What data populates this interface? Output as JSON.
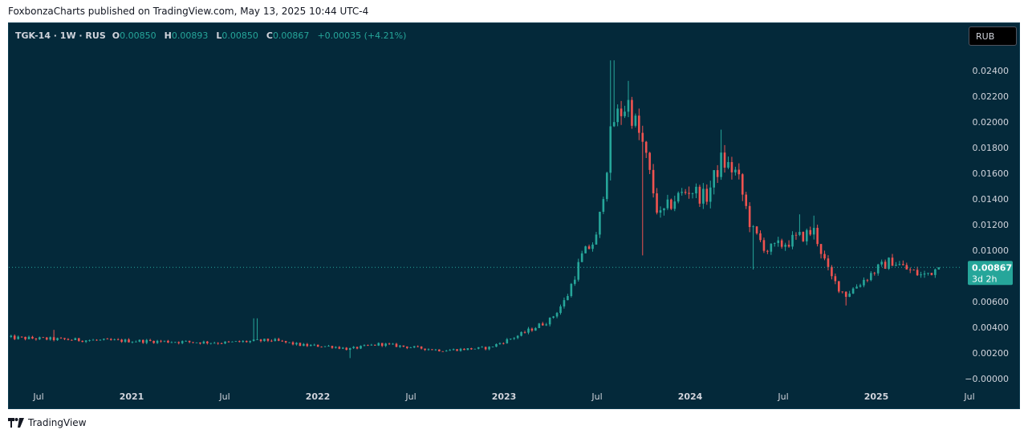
{
  "header": {
    "credit": "FoxbonzaCharts published on TradingView.com, May 13, 2025 10:44 UTC-4"
  },
  "legend": {
    "symbol": "TGK-14 · 1W · RUS",
    "o_label": "O",
    "o_value": "0.00850",
    "h_label": "H",
    "h_value": "0.00893",
    "l_label": "L",
    "l_value": "0.00850",
    "c_label": "C",
    "c_value": "0.00867",
    "change": "+0.00035 (+4.21%)"
  },
  "currency_button": "RUB",
  "price_badge": {
    "price": "0.00867",
    "countdown": "3d 2h"
  },
  "footer": {
    "brand": "TradingView"
  },
  "colors": {
    "background": "#04293a",
    "up": "#26a69a",
    "down": "#ef5350",
    "axis_text": "#d1d4dc"
  },
  "chart_data": {
    "type": "candlestick",
    "interval": "1W",
    "x_tick_labels": [
      "Jul",
      "2021",
      "Jul",
      "2022",
      "Jul",
      "2023",
      "Jul",
      "2024",
      "Jul",
      "2025",
      "Jul"
    ],
    "y_tick_labels": [
      "0.02400",
      "0.02200",
      "0.02000",
      "0.01800",
      "0.01600",
      "0.01400",
      "0.01200",
      "0.01000",
      "0.00800",
      "0.00600",
      "0.00400",
      "0.00200",
      "−0.00000"
    ],
    "y_tick_values": [
      0.024,
      0.022,
      0.02,
      0.018,
      0.016,
      0.014,
      0.012,
      0.01,
      0.008,
      0.006,
      0.004,
      0.002,
      0.0
    ],
    "ylim": [
      -0.0001,
      0.0255
    ],
    "x_range": [
      "2020-05",
      "2025-07"
    ],
    "grid": false,
    "last_price": 0.00867,
    "price_anchors": [
      [
        "2020-05",
        0.0032
      ],
      [
        "2020-10",
        0.003
      ],
      [
        "2021-03",
        0.0029
      ],
      [
        "2021-07",
        0.0028
      ],
      [
        "2021-10",
        0.003
      ],
      [
        "2021-12",
        0.0026
      ],
      [
        "2022-02",
        0.0025
      ],
      [
        "2022-03",
        0.0023
      ],
      [
        "2022-05",
        0.0027
      ],
      [
        "2022-09",
        0.0022
      ],
      [
        "2022-12",
        0.0024
      ],
      [
        "2023-02",
        0.0034
      ],
      [
        "2023-04",
        0.0046
      ],
      [
        "2023-05",
        0.0062
      ],
      [
        "2023-06",
        0.0095
      ],
      [
        "2023-07",
        0.011
      ],
      [
        "2023-08",
        0.02
      ],
      [
        "2023-09",
        0.0215
      ],
      [
        "2023-10",
        0.018
      ],
      [
        "2023-11",
        0.0125
      ],
      [
        "2023-12",
        0.014
      ],
      [
        "2024-01",
        0.0148
      ],
      [
        "2024-02",
        0.014
      ],
      [
        "2024-03",
        0.017
      ],
      [
        "2024-04",
        0.016
      ],
      [
        "2024-05",
        0.0115
      ],
      [
        "2024-06",
        0.01
      ],
      [
        "2024-07",
        0.0105
      ],
      [
        "2024-08",
        0.011
      ],
      [
        "2024-09",
        0.0115
      ],
      [
        "2024-10",
        0.008
      ],
      [
        "2024-11",
        0.0065
      ],
      [
        "2024-12",
        0.0075
      ],
      [
        "2025-01",
        0.0085
      ],
      [
        "2025-02",
        0.0092
      ],
      [
        "2025-03",
        0.0085
      ],
      [
        "2025-04",
        0.008
      ],
      [
        "2025-05",
        0.00867
      ]
    ],
    "spike_highs": [
      [
        "2020-08",
        0.0038
      ],
      [
        "2021-09",
        0.0047
      ],
      [
        "2023-08",
        0.0248
      ],
      [
        "2023-09",
        0.0232
      ],
      [
        "2024-03",
        0.0194
      ],
      [
        "2024-08",
        0.0128
      ],
      [
        "2024-09",
        0.0127
      ]
    ],
    "spike_lows": [
      [
        "2022-03",
        0.0016
      ],
      [
        "2023-10",
        0.0096
      ],
      [
        "2024-05",
        0.0085
      ],
      [
        "2024-11",
        0.0057
      ]
    ]
  }
}
